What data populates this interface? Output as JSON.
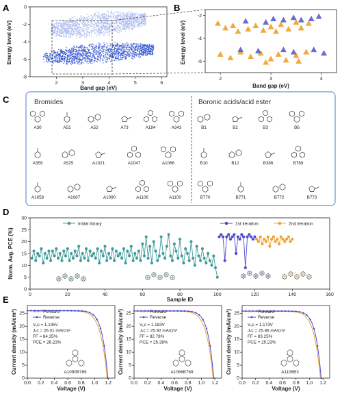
{
  "panels": {
    "a": "A",
    "b": "B",
    "c": "C",
    "d": "D",
    "e": "E"
  },
  "panelA": {
    "ylabel": "Energy level (eV)",
    "xlabel": "Band gap (eV)",
    "xticks": [
      "2",
      "3",
      "4",
      "5",
      "6"
    ],
    "yticks": [
      "0",
      "-2",
      "-4",
      "-6",
      "-8"
    ],
    "xlim": [
      1,
      6.2
    ],
    "ylim": [
      -8,
      0
    ],
    "chart_data": {
      "type": "scatter",
      "series": [
        {
          "level": "upper",
          "color": "#a9b8ef",
          "x_range": [
            1.8,
            5.4
          ],
          "y_range": [
            -3.8,
            -0.4
          ]
        },
        {
          "level": "lower",
          "color": "#3a5bd0",
          "x_range": [
            1.5,
            5.7
          ],
          "y_range": [
            -6.8,
            -4.0
          ]
        }
      ]
    }
  },
  "panelB": {
    "ylabel": "Energy level (eV)",
    "xlabel": "Band gap (eV)",
    "xticks": [
      "2",
      "3",
      "4"
    ],
    "yticks": [
      "-2",
      "-4",
      "-6"
    ],
    "xlim": [
      1.7,
      4.3
    ],
    "ylim": [
      -7,
      -1.5
    ],
    "chart_data": {
      "type": "scatter",
      "series": [
        {
          "color": "#f0a02a",
          "marker": "triangle",
          "points": [
            [
              1.95,
              -2.7
            ],
            [
              2.1,
              -3.1
            ],
            [
              2.25,
              -2.9
            ],
            [
              2.35,
              -3.4
            ],
            [
              2.55,
              -3.2
            ],
            [
              2.7,
              -2.9
            ],
            [
              2.85,
              -3.3
            ],
            [
              3.0,
              -3.0
            ],
            [
              3.1,
              -3.4
            ],
            [
              3.2,
              -2.8
            ],
            [
              3.35,
              -3.2
            ],
            [
              3.5,
              -2.6
            ],
            [
              3.6,
              -3.1
            ],
            [
              3.75,
              -2.7
            ],
            [
              2.0,
              -5.4
            ],
            [
              2.2,
              -5.7
            ],
            [
              2.4,
              -5.2
            ],
            [
              2.6,
              -5.6
            ],
            [
              2.8,
              -5.3
            ],
            [
              3.0,
              -5.8
            ],
            [
              3.15,
              -5.4
            ],
            [
              3.3,
              -5.9
            ],
            [
              3.5,
              -5.5
            ],
            [
              3.7,
              -5.2
            ],
            [
              3.55,
              -6.0
            ],
            [
              2.9,
              -6.1
            ]
          ]
        },
        {
          "color": "#5c5cc8",
          "marker": "triangle",
          "points": [
            [
              2.5,
              -2.5
            ],
            [
              2.9,
              -2.6
            ],
            [
              3.05,
              -2.3
            ],
            [
              3.25,
              -2.4
            ],
            [
              3.45,
              -2.2
            ],
            [
              3.6,
              -2.4
            ],
            [
              3.8,
              -2.3
            ],
            [
              3.95,
              -2.1
            ],
            [
              2.4,
              -5.0
            ],
            [
              2.75,
              -5.1
            ],
            [
              3.25,
              -5.0
            ],
            [
              3.45,
              -5.2
            ],
            [
              3.85,
              -5.0
            ],
            [
              4.05,
              -5.3
            ]
          ]
        }
      ]
    }
  },
  "panelC": {
    "left_title": "Bromides",
    "right_title": "Boronic acids/acid ester",
    "bromides": [
      "A30",
      "A51",
      "A52",
      "A73",
      "A184",
      "A343",
      "A359",
      "A525",
      "A1021",
      "A1047",
      "A1066",
      "A1058",
      "A1087",
      "A1090",
      "A1106",
      "A1100"
    ],
    "boronic": [
      "B1",
      "B2",
      "B3",
      "B6",
      "B10",
      "B12",
      "B386",
      "B769",
      "B770",
      "B771",
      "B772",
      "B773"
    ]
  },
  "panelD": {
    "ylabel": "Norm. Avg. PCE (%)",
    "xlabel": "Sample ID",
    "xticks": [
      "0",
      "20",
      "40",
      "60",
      "80",
      "100",
      "120",
      "140",
      "160"
    ],
    "yticks": [
      "0",
      "5",
      "10",
      "15",
      "20",
      "25",
      "30"
    ],
    "xlim": [
      0,
      160
    ],
    "ylim": [
      0,
      30
    ],
    "chart_data": {
      "type": "line",
      "series": [
        {
          "name": "Initial library",
          "color": "#3f9a9a",
          "x_start": 1,
          "values": [
            13,
            16,
            12,
            15,
            14,
            17,
            11,
            15,
            13,
            16,
            12,
            16,
            14,
            17,
            13,
            15,
            12,
            16,
            14,
            17,
            12,
            15,
            13,
            16,
            14,
            18,
            12,
            15,
            13,
            17,
            12,
            16,
            14,
            15,
            13,
            17,
            11,
            16,
            14,
            18,
            12,
            15,
            13,
            17,
            12,
            16,
            14,
            15,
            13,
            17,
            11,
            16,
            14,
            18,
            12,
            15,
            13,
            16,
            12,
            19,
            14,
            22,
            13,
            18,
            11,
            20,
            16,
            12,
            14,
            22,
            15,
            13,
            18,
            23,
            14,
            12,
            19,
            16,
            13,
            21,
            14,
            11,
            17,
            15,
            12,
            20,
            13,
            10,
            18,
            14,
            12,
            17,
            13,
            11,
            15,
            12,
            10,
            14,
            9,
            5
          ]
        },
        {
          "name": "1st iteration",
          "color": "#4a4acc",
          "x_start": 101,
          "values": [
            22,
            23,
            22,
            12,
            22,
            23,
            21,
            22,
            23,
            15,
            22,
            21,
            23,
            22,
            9,
            22,
            23,
            22,
            21,
            22
          ]
        },
        {
          "name": "2nd iteration",
          "color": "#f0a030",
          "x_start": 121,
          "values": [
            21,
            20,
            22,
            19,
            21,
            20,
            22,
            18,
            21,
            22,
            20,
            21,
            19,
            22,
            21,
            20,
            21,
            22,
            20,
            21
          ]
        }
      ]
    }
  },
  "panelE": {
    "ylabel": "Current density (mA/cm²)",
    "xlabel": "Voltage (V)",
    "xticks": [
      "0.0",
      "0.2",
      "0.4",
      "0.6",
      "0.8",
      "1.0",
      "1.2"
    ],
    "yticks": [
      "0",
      "5",
      "10",
      "15",
      "20",
      "25"
    ],
    "legend": [
      "Forward",
      "Reverse"
    ],
    "forward_color": "#f0a030",
    "reverse_color": "#4a4acc",
    "devices": [
      {
        "label": "A1090B769",
        "voc": 1.195,
        "jsc": 26.01,
        "lines": [
          "Vₒᴄ = 1.195V",
          "Jₛᴄ = 26.01 mA/cm²",
          "FF = 84.35%",
          "PCE = 26.23%"
        ]
      },
      {
        "label": "A1066B769",
        "voc": 1.183,
        "jsc": 25.92,
        "lines": [
          "Vₒᴄ = 1.183V",
          "Jₛᴄ = 25.92 mA/cm²",
          "FF = 82.78%",
          "PCE = 25.38%"
        ]
      },
      {
        "label": "A1106B3",
        "voc": 1.173,
        "jsc": 25.86,
        "lines": [
          "Vₒᴄ = 1.173V",
          "Jₛᴄ = 25.86 mA/cm²",
          "FF = 83.25%",
          "PCE = 25.23%"
        ]
      }
    ]
  }
}
